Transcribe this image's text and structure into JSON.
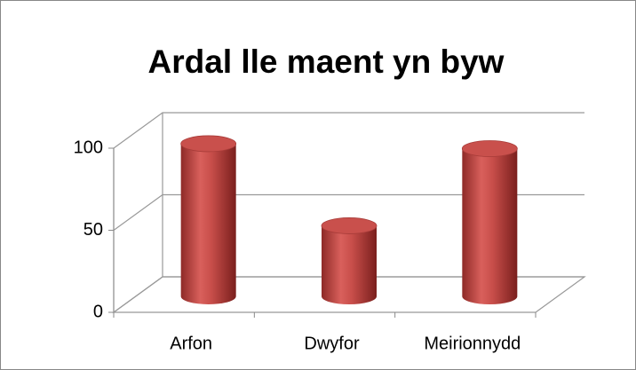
{
  "chart_data": {
    "type": "cylinder",
    "title": "Ardal lle maent yn byw",
    "categories": [
      "Arfon",
      "Dwyfor",
      "Meirionnydd"
    ],
    "values": [
      93,
      43,
      90
    ],
    "color": "#c0504d",
    "ylim": [
      0,
      100
    ],
    "yticks": [
      0,
      50,
      100
    ],
    "grid": true
  }
}
